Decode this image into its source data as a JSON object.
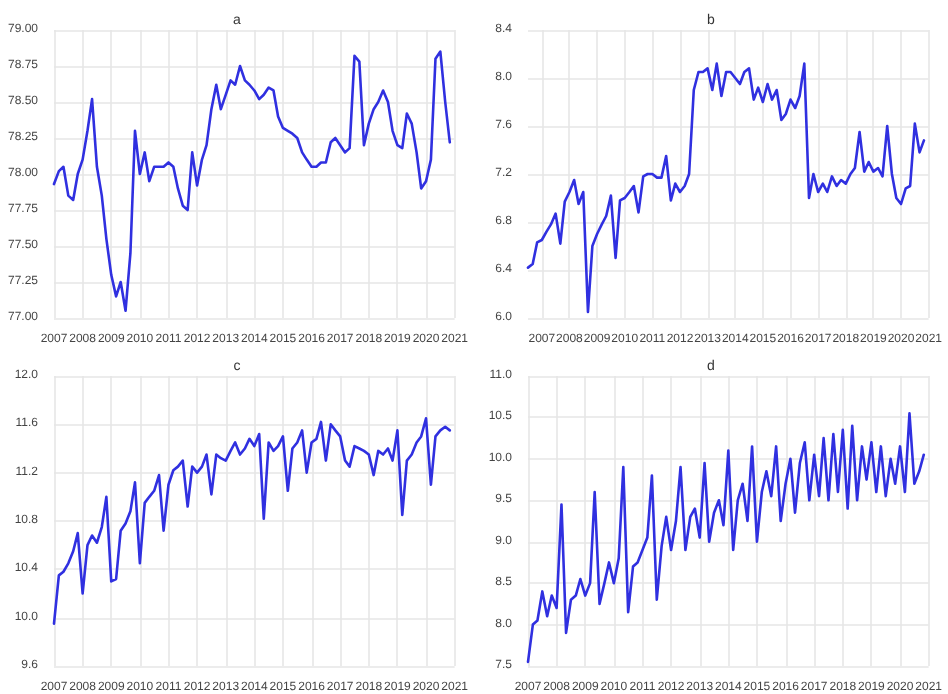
{
  "chart_data": [
    {
      "type": "line",
      "title": "a",
      "x": [
        2007,
        2007.17,
        2007.33,
        2007.5,
        2007.67,
        2007.83,
        2008,
        2008.17,
        2008.33,
        2008.5,
        2008.67,
        2008.83,
        2009,
        2009.17,
        2009.33,
        2009.5,
        2009.67,
        2009.83,
        2010,
        2010.17,
        2010.33,
        2010.5,
        2010.67,
        2010.83,
        2011,
        2011.17,
        2011.33,
        2011.5,
        2011.67,
        2011.83,
        2012,
        2012.17,
        2012.33,
        2012.5,
        2012.67,
        2012.83,
        2013,
        2013.17,
        2013.33,
        2013.5,
        2013.67,
        2013.83,
        2014,
        2014.17,
        2014.33,
        2014.5,
        2014.67,
        2014.83,
        2015,
        2015.17,
        2015.33,
        2015.5,
        2015.67,
        2015.83,
        2016,
        2016.17,
        2016.33,
        2016.5,
        2016.67,
        2016.83,
        2017,
        2017.17,
        2017.33,
        2017.5,
        2017.67,
        2017.83,
        2018,
        2018.17,
        2018.33,
        2018.5,
        2018.67,
        2018.83,
        2019,
        2019.17,
        2019.33,
        2019.5,
        2019.67,
        2019.83,
        2020,
        2020.17,
        2020.33,
        2020.5,
        2020.67,
        2020.83
      ],
      "series": [
        {
          "color": "#3030e0",
          "values": [
            77.93,
            78.02,
            78.05,
            77.85,
            77.82,
            78.0,
            78.1,
            78.3,
            78.52,
            78.05,
            77.85,
            77.55,
            77.3,
            77.15,
            77.25,
            77.05,
            77.45,
            78.3,
            78.0,
            78.15,
            77.95,
            78.05,
            78.05,
            78.05,
            78.08,
            78.05,
            77.9,
            77.78,
            77.75,
            78.15,
            77.92,
            78.1,
            78.2,
            78.45,
            78.62,
            78.45,
            78.55,
            78.65,
            78.62,
            78.75,
            78.65,
            78.62,
            78.58,
            78.52,
            78.55,
            78.6,
            78.58,
            78.4,
            78.32,
            78.3,
            78.28,
            78.25,
            78.15,
            78.1,
            78.05,
            78.05,
            78.08,
            78.08,
            78.22,
            78.25,
            78.2,
            78.15,
            78.18,
            78.82,
            78.78,
            78.2,
            78.35,
            78.45,
            78.5,
            78.58,
            78.5,
            78.3,
            78.2,
            78.18,
            78.42,
            78.35,
            78.15,
            77.9,
            77.95,
            78.1,
            78.8,
            78.85,
            78.5,
            78.22
          ]
        }
      ],
      "xlim": [
        2007,
        2021
      ],
      "xticks": [
        2007,
        2008,
        2009,
        2010,
        2011,
        2012,
        2013,
        2014,
        2015,
        2016,
        2017,
        2018,
        2019,
        2020,
        2021
      ],
      "ylim": [
        77,
        79
      ],
      "yticks": [
        {
          "value": 77,
          "label": "77.00"
        },
        {
          "value": 77.25,
          "label": "77.25"
        },
        {
          "value": 77.5,
          "label": "77.50"
        },
        {
          "value": 77.75,
          "label": "77.75"
        },
        {
          "value": 78,
          "label": "78.00"
        },
        {
          "value": 78.25,
          "label": "78.25"
        },
        {
          "value": 78.5,
          "label": "78.50"
        },
        {
          "value": 78.75,
          "label": "78.75"
        },
        {
          "value": 79,
          "label": "79.00"
        }
      ],
      "grid": true,
      "marker": "none",
      "line_style": "solid"
    },
    {
      "type": "line",
      "title": "b",
      "x": [
        2006.5,
        2006.67,
        2006.83,
        2007,
        2007.17,
        2007.33,
        2007.5,
        2007.67,
        2007.83,
        2008,
        2008.17,
        2008.33,
        2008.5,
        2008.67,
        2008.83,
        2009,
        2009.17,
        2009.33,
        2009.5,
        2009.67,
        2009.83,
        2010,
        2010.17,
        2010.33,
        2010.5,
        2010.67,
        2010.83,
        2011,
        2011.17,
        2011.33,
        2011.5,
        2011.67,
        2011.83,
        2012,
        2012.17,
        2012.33,
        2012.5,
        2012.67,
        2012.83,
        2013,
        2013.17,
        2013.33,
        2013.5,
        2013.67,
        2013.83,
        2014,
        2014.17,
        2014.33,
        2014.5,
        2014.67,
        2014.83,
        2015,
        2015.17,
        2015.33,
        2015.5,
        2015.67,
        2015.83,
        2016,
        2016.17,
        2016.33,
        2016.5,
        2016.67,
        2016.83,
        2017,
        2017.17,
        2017.33,
        2017.5,
        2017.67,
        2017.83,
        2018,
        2018.17,
        2018.33,
        2018.5,
        2018.67,
        2018.83,
        2019,
        2019.17,
        2019.33,
        2019.5,
        2019.67,
        2019.83,
        2020,
        2020.17,
        2020.33,
        2020.5,
        2020.67,
        2020.83
      ],
      "series": [
        {
          "color": "#3030e0",
          "values": [
            6.42,
            6.45,
            6.63,
            6.65,
            6.72,
            6.78,
            6.87,
            6.62,
            6.97,
            7.05,
            7.15,
            6.95,
            7.05,
            6.05,
            6.6,
            6.7,
            6.78,
            6.85,
            7.02,
            6.5,
            6.98,
            7.0,
            7.05,
            7.1,
            6.88,
            7.18,
            7.2,
            7.2,
            7.17,
            7.17,
            7.35,
            6.98,
            7.12,
            7.05,
            7.1,
            7.2,
            7.9,
            8.05,
            8.05,
            8.08,
            7.9,
            8.12,
            7.85,
            8.05,
            8.05,
            8.0,
            7.95,
            8.05,
            8.08,
            7.82,
            7.92,
            7.8,
            7.95,
            7.82,
            7.9,
            7.65,
            7.7,
            7.82,
            7.75,
            7.85,
            8.12,
            7.0,
            7.2,
            7.05,
            7.12,
            7.05,
            7.18,
            7.1,
            7.15,
            7.12,
            7.2,
            7.25,
            7.55,
            7.22,
            7.3,
            7.22,
            7.25,
            7.18,
            7.6,
            7.2,
            7.0,
            6.95,
            7.08,
            7.1,
            7.62,
            7.38,
            7.48
          ]
        }
      ],
      "xlim": [
        2006.5,
        2021
      ],
      "xticks": [
        2007,
        2008,
        2009,
        2010,
        2011,
        2012,
        2013,
        2014,
        2015,
        2016,
        2017,
        2018,
        2019,
        2020,
        2021
      ],
      "ylim": [
        6,
        8.4
      ],
      "yticks": [
        {
          "value": 6,
          "label": "6.0"
        },
        {
          "value": 6.4,
          "label": "6.4"
        },
        {
          "value": 6.8,
          "label": "6.8"
        },
        {
          "value": 7.2,
          "label": "7.2"
        },
        {
          "value": 7.6,
          "label": "7.6"
        },
        {
          "value": 8,
          "label": "8.0"
        },
        {
          "value": 8.4,
          "label": "8.4"
        }
      ],
      "grid": true,
      "marker": "none",
      "line_style": "solid"
    },
    {
      "type": "line",
      "title": "c",
      "x": [
        2007,
        2007.17,
        2007.33,
        2007.5,
        2007.67,
        2007.83,
        2008,
        2008.17,
        2008.33,
        2008.5,
        2008.67,
        2008.83,
        2009,
        2009.17,
        2009.33,
        2009.5,
        2009.67,
        2009.83,
        2010,
        2010.17,
        2010.33,
        2010.5,
        2010.67,
        2010.83,
        2011,
        2011.17,
        2011.33,
        2011.5,
        2011.67,
        2011.83,
        2012,
        2012.17,
        2012.33,
        2012.5,
        2012.67,
        2012.83,
        2013,
        2013.17,
        2013.33,
        2013.5,
        2013.67,
        2013.83,
        2014,
        2014.17,
        2014.33,
        2014.5,
        2014.67,
        2014.83,
        2015,
        2015.17,
        2015.33,
        2015.5,
        2015.67,
        2015.83,
        2016,
        2016.17,
        2016.33,
        2016.5,
        2016.67,
        2016.83,
        2017,
        2017.17,
        2017.33,
        2017.5,
        2017.67,
        2017.83,
        2018,
        2018.17,
        2018.33,
        2018.5,
        2018.67,
        2018.83,
        2019,
        2019.17,
        2019.33,
        2019.5,
        2019.67,
        2019.83,
        2020,
        2020.17,
        2020.33,
        2020.5,
        2020.67,
        2020.83
      ],
      "series": [
        {
          "color": "#3030e0",
          "values": [
            9.95,
            10.35,
            10.38,
            10.45,
            10.55,
            10.7,
            10.2,
            10.6,
            10.68,
            10.62,
            10.75,
            11.0,
            10.3,
            10.32,
            10.72,
            10.78,
            10.88,
            11.12,
            10.45,
            10.95,
            11.0,
            11.05,
            11.18,
            10.72,
            11.1,
            11.22,
            11.25,
            11.3,
            10.92,
            11.25,
            11.2,
            11.25,
            11.35,
            11.02,
            11.35,
            11.32,
            11.3,
            11.38,
            11.45,
            11.35,
            11.4,
            11.48,
            11.42,
            11.52,
            10.82,
            11.45,
            11.38,
            11.42,
            11.5,
            11.05,
            11.4,
            11.45,
            11.55,
            11.2,
            11.45,
            11.48,
            11.62,
            11.3,
            11.6,
            11.55,
            11.5,
            11.3,
            11.25,
            11.42,
            11.4,
            11.38,
            11.35,
            11.18,
            11.38,
            11.35,
            11.4,
            11.3,
            11.55,
            10.85,
            11.3,
            11.35,
            11.45,
            11.5,
            11.65,
            11.1,
            11.5,
            11.55,
            11.58,
            11.55
          ]
        }
      ],
      "xlim": [
        2007,
        2021
      ],
      "xticks": [
        2007,
        2008,
        2009,
        2010,
        2011,
        2012,
        2013,
        2014,
        2015,
        2016,
        2017,
        2018,
        2019,
        2020,
        2021
      ],
      "ylim": [
        9.6,
        12
      ],
      "yticks": [
        {
          "value": 9.6,
          "label": "9.6"
        },
        {
          "value": 10,
          "label": "10.0"
        },
        {
          "value": 10.4,
          "label": "10.4"
        },
        {
          "value": 10.8,
          "label": "10.8"
        },
        {
          "value": 11.2,
          "label": "11.2"
        },
        {
          "value": 11.6,
          "label": "11.6"
        },
        {
          "value": 12,
          "label": "12.0"
        }
      ],
      "grid": true,
      "marker": "none",
      "line_style": "solid"
    },
    {
      "type": "line",
      "title": "d",
      "x": [
        2007,
        2007.17,
        2007.33,
        2007.5,
        2007.67,
        2007.83,
        2008,
        2008.17,
        2008.33,
        2008.5,
        2008.67,
        2008.83,
        2009,
        2009.17,
        2009.33,
        2009.5,
        2009.67,
        2009.83,
        2010,
        2010.17,
        2010.33,
        2010.5,
        2010.67,
        2010.83,
        2011,
        2011.17,
        2011.33,
        2011.5,
        2011.67,
        2011.83,
        2012,
        2012.17,
        2012.33,
        2012.5,
        2012.67,
        2012.83,
        2013,
        2013.17,
        2013.33,
        2013.5,
        2013.67,
        2013.83,
        2014,
        2014.17,
        2014.33,
        2014.5,
        2014.67,
        2014.83,
        2015,
        2015.17,
        2015.33,
        2015.5,
        2015.67,
        2015.83,
        2016,
        2016.17,
        2016.33,
        2016.5,
        2016.67,
        2016.83,
        2017,
        2017.17,
        2017.33,
        2017.5,
        2017.67,
        2017.83,
        2018,
        2018.17,
        2018.33,
        2018.5,
        2018.67,
        2018.83,
        2019,
        2019.17,
        2019.33,
        2019.5,
        2019.67,
        2019.83,
        2020,
        2020.17,
        2020.33,
        2020.5,
        2020.67,
        2020.83
      ],
      "series": [
        {
          "color": "#3030e0",
          "values": [
            7.55,
            8.0,
            8.05,
            8.4,
            8.1,
            8.35,
            8.2,
            9.45,
            7.9,
            8.3,
            8.35,
            8.55,
            8.35,
            8.5,
            9.6,
            8.25,
            8.5,
            8.75,
            8.5,
            8.8,
            9.9,
            8.15,
            8.7,
            8.75,
            8.9,
            9.05,
            9.8,
            8.3,
            8.95,
            9.3,
            8.9,
            9.25,
            9.9,
            8.9,
            9.3,
            9.4,
            9.05,
            9.95,
            9.0,
            9.35,
            9.5,
            9.2,
            10.1,
            8.9,
            9.5,
            9.7,
            9.25,
            10.15,
            9.0,
            9.6,
            9.85,
            9.55,
            10.15,
            9.25,
            9.7,
            10.0,
            9.35,
            9.95,
            10.2,
            9.5,
            10.05,
            9.55,
            10.25,
            9.5,
            10.3,
            9.6,
            10.35,
            9.4,
            10.4,
            9.5,
            10.15,
            9.75,
            10.2,
            9.6,
            10.15,
            9.55,
            10.0,
            9.7,
            10.15,
            9.6,
            10.55,
            9.7,
            9.85,
            10.05
          ]
        }
      ],
      "xlim": [
        2007,
        2021
      ],
      "xticks": [
        2007,
        2008,
        2009,
        2010,
        2011,
        2012,
        2013,
        2014,
        2015,
        2016,
        2017,
        2018,
        2019,
        2020,
        2021
      ],
      "ylim": [
        7.5,
        11
      ],
      "yticks": [
        {
          "value": 7.5,
          "label": "7.5"
        },
        {
          "value": 8,
          "label": "8.0"
        },
        {
          "value": 8.5,
          "label": "8.5"
        },
        {
          "value": 9,
          "label": "9.0"
        },
        {
          "value": 9.5,
          "label": "9.5"
        },
        {
          "value": 10,
          "label": "10.0"
        },
        {
          "value": 10.5,
          "label": "10.5"
        },
        {
          "value": 11,
          "label": "11.0"
        }
      ],
      "grid": true,
      "marker": "none",
      "line_style": "solid"
    }
  ]
}
